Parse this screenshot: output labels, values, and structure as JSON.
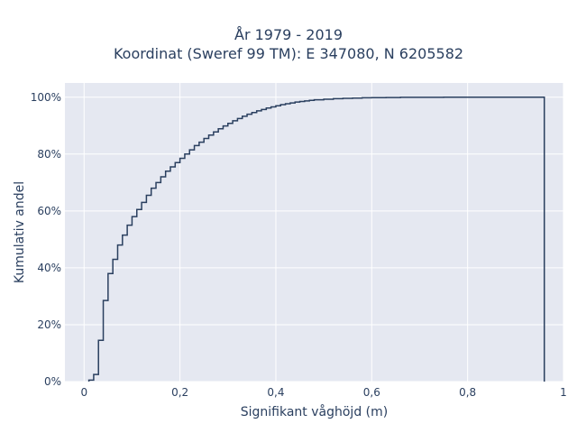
{
  "chart_data": {
    "type": "line",
    "subtype": "empirical-cdf-step",
    "title": "År 1979 - 2019",
    "subtitle": "Koordinat (Sweref 99 TM): E 347080, N 6205582",
    "xlabel": "Signifikant våghöjd (m)",
    "ylabel": "Kumulativ andel",
    "xlim": [
      -0.04,
      1.0
    ],
    "ylim": [
      0,
      1.05
    ],
    "xticks": [
      0,
      0.2,
      0.4,
      0.6,
      0.8,
      1.0
    ],
    "xtick_labels": [
      "0",
      "0,2",
      "0,4",
      "0,6",
      "0,8",
      "1"
    ],
    "yticks": [
      0,
      0.2,
      0.4,
      0.6,
      0.8,
      1.0
    ],
    "ytick_labels": [
      "0%",
      "20%",
      "40%",
      "60%",
      "80%",
      "100%"
    ],
    "grid": true,
    "background_color": "#e5e8f1",
    "line_color": "#2a3f5f",
    "series": [
      {
        "x": [
          0.01,
          0.02,
          0.03,
          0.04,
          0.05,
          0.06,
          0.07,
          0.08,
          0.09,
          0.1,
          0.11,
          0.12,
          0.13,
          0.14,
          0.15,
          0.16,
          0.17,
          0.18,
          0.19,
          0.2,
          0.21,
          0.22,
          0.23,
          0.24,
          0.25,
          0.26,
          0.27,
          0.28,
          0.29,
          0.3,
          0.31,
          0.32,
          0.33,
          0.34,
          0.35,
          0.36,
          0.37,
          0.38,
          0.39,
          0.4,
          0.41,
          0.42,
          0.43,
          0.44,
          0.45,
          0.46,
          0.47,
          0.48,
          0.5,
          0.52,
          0.54,
          0.56,
          0.58,
          0.6,
          0.63,
          0.66,
          0.7,
          0.75,
          0.8,
          0.96
        ],
        "y": [
          0.005,
          0.025,
          0.145,
          0.285,
          0.38,
          0.43,
          0.48,
          0.515,
          0.55,
          0.58,
          0.605,
          0.63,
          0.655,
          0.68,
          0.7,
          0.72,
          0.74,
          0.755,
          0.77,
          0.785,
          0.8,
          0.815,
          0.83,
          0.842,
          0.855,
          0.867,
          0.878,
          0.889,
          0.899,
          0.908,
          0.917,
          0.925,
          0.933,
          0.94,
          0.946,
          0.952,
          0.957,
          0.962,
          0.966,
          0.97,
          0.974,
          0.977,
          0.98,
          0.983,
          0.985,
          0.987,
          0.989,
          0.991,
          0.993,
          0.995,
          0.996,
          0.997,
          0.998,
          0.9985,
          0.999,
          0.9995,
          0.9998,
          0.9999,
          1.0,
          1.0
        ]
      }
    ]
  }
}
